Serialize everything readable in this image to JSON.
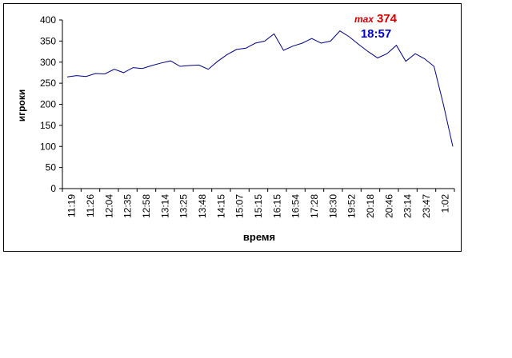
{
  "chart_data": {
    "type": "line",
    "xlabel": "время",
    "ylabel": "игроки",
    "ylim": [
      0,
      400
    ],
    "yticks": [
      0,
      50,
      100,
      150,
      200,
      250,
      300,
      350,
      400
    ],
    "x_tick_labels": [
      "11:19",
      "11:26",
      "12:04",
      "12:35",
      "12:58",
      "13:14",
      "13:25",
      "13:48",
      "14:15",
      "15:07",
      "15:15",
      "16:15",
      "16:54",
      "17:28",
      "18:30",
      "19:52",
      "20:18",
      "20:46",
      "23:14",
      "23:47",
      "1:02"
    ],
    "series": [
      {
        "values": [
          265,
          268,
          266,
          273,
          272,
          283,
          275,
          287,
          285,
          292,
          298,
          303,
          290,
          292,
          293,
          283,
          302,
          318,
          330,
          333,
          345,
          350,
          367,
          328,
          338,
          345,
          356,
          345,
          350,
          374,
          360,
          342,
          325,
          310,
          320,
          340,
          302,
          320,
          308,
          290,
          200,
          100
        ]
      }
    ],
    "grid": false,
    "line_color": "#000080",
    "annotations": {
      "max_prefix": "max",
      "max_value": "374",
      "max_time": "18:57",
      "max_prefix_color": "#cc0000",
      "max_time_color": "#0000cc"
    }
  }
}
